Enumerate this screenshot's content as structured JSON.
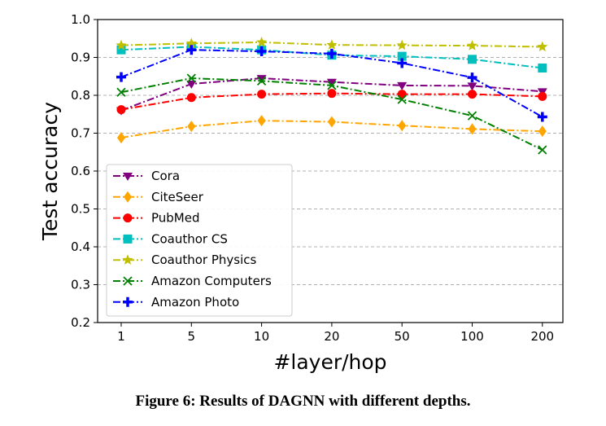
{
  "chart_data": {
    "type": "line",
    "x": [
      "1",
      "5",
      "10",
      "20",
      "50",
      "100",
      "200"
    ],
    "xlabel": "#layer/hop",
    "ylabel": "Test accuracy",
    "ylim": [
      0.2,
      1.0
    ],
    "yticks": [
      "0.2",
      "0.3",
      "0.4",
      "0.5",
      "0.6",
      "0.7",
      "0.8",
      "0.9",
      "1.0"
    ],
    "grid": "horizontal dashed",
    "legend_position": "lower-left",
    "series": [
      {
        "name": "Cora",
        "color": "#800080",
        "marker": "triangle-down",
        "values": [
          0.76,
          0.83,
          0.845,
          0.835,
          0.826,
          0.825,
          0.81
        ]
      },
      {
        "name": "CiteSeer",
        "color": "#FFA500",
        "marker": "diamond",
        "values": [
          0.688,
          0.718,
          0.733,
          0.73,
          0.72,
          0.711,
          0.705
        ]
      },
      {
        "name": "PubMed",
        "color": "#FF0000",
        "marker": "circle",
        "values": [
          0.762,
          0.794,
          0.803,
          0.805,
          0.803,
          0.803,
          0.797
        ]
      },
      {
        "name": "Coauthor CS",
        "color": "#00BFBF",
        "marker": "square",
        "values": [
          0.92,
          0.928,
          0.92,
          0.906,
          0.903,
          0.895,
          0.872
        ]
      },
      {
        "name": "Coauthor Physics",
        "color": "#BFBF00",
        "marker": "star",
        "values": [
          0.932,
          0.937,
          0.94,
          0.933,
          0.932,
          0.931,
          0.928
        ]
      },
      {
        "name": "Amazon Computers",
        "color": "#008000",
        "marker": "x",
        "values": [
          0.808,
          0.845,
          0.838,
          0.826,
          0.789,
          0.746,
          0.656
        ]
      },
      {
        "name": "Amazon Photo",
        "color": "#0000FF",
        "marker": "plus",
        "values": [
          0.848,
          0.92,
          0.916,
          0.91,
          0.885,
          0.847,
          0.743
        ]
      }
    ]
  },
  "caption": "Figure 6: Results of DAGNN with different depths."
}
